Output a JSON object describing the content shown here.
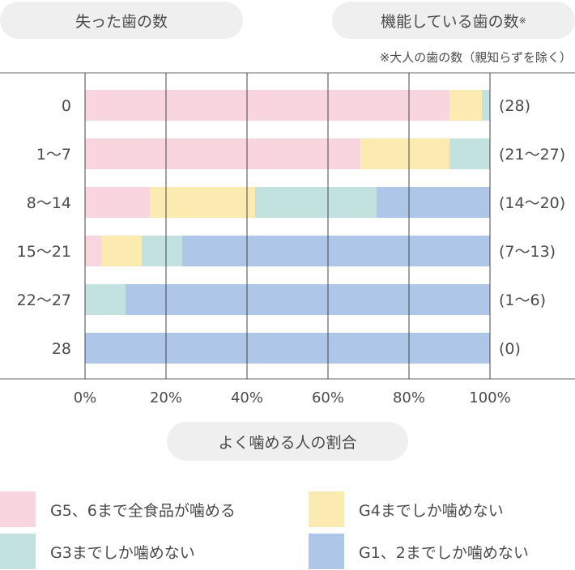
{
  "header": {
    "left_title": "失った歯の数",
    "right_title": "機能している歯の数",
    "right_title_mark": "※",
    "footnote": "※大人の歯の数（親知らずを除く）"
  },
  "colors": {
    "g5_6": "#f9d6df",
    "g4": "#fcebb0",
    "g3": "#c1e2df",
    "g1_2": "#aec6e8"
  },
  "chart_data": {
    "type": "bar",
    "orientation": "horizontal",
    "stacked": true,
    "categories": [
      "0",
      "1〜7",
      "8〜14",
      "15〜21",
      "22〜27",
      "28"
    ],
    "right_labels": [
      "(28)",
      "(21〜27)",
      "(14〜20)",
      "(7〜13)",
      "(1〜6)",
      "(0)"
    ],
    "xlabel": "よく噛める人の割合",
    "xlim": [
      0,
      100
    ],
    "xticks": [
      "0%",
      "20%",
      "40%",
      "60%",
      "80%",
      "100%"
    ],
    "grid": true,
    "legend_position": "bottom",
    "series": [
      {
        "name": "G5、6まで全食品が噛める",
        "color": "#f9d6df",
        "values": [
          90,
          68,
          16,
          4,
          0,
          0
        ]
      },
      {
        "name": "G4までしか噛めない",
        "color": "#fcebb0",
        "values": [
          8,
          22,
          26,
          10,
          0,
          0
        ]
      },
      {
        "name": "G3までしか噛めない",
        "color": "#c1e2df",
        "values": [
          2,
          10,
          30,
          10,
          10,
          0
        ]
      },
      {
        "name": "G1、2までしか噛めない",
        "color": "#aec6e8",
        "values": [
          0,
          0,
          28,
          76,
          90,
          100
        ]
      }
    ]
  }
}
